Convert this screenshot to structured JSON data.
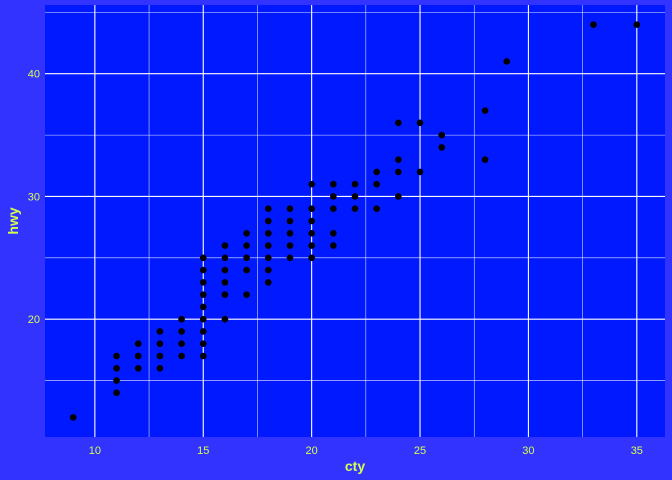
{
  "colors": {
    "page_background": "#3333ff",
    "panel_background": "#0019ff",
    "grid": "#ffffff",
    "text": "#d6ff4d",
    "points": "#000000"
  },
  "chart_data": {
    "type": "scatter",
    "xlabel": "cty",
    "ylabel": "hwy",
    "xlim": [
      7.7,
      36.3
    ],
    "ylim": [
      10.4,
      45.6
    ],
    "x_ticks": [
      10,
      15,
      20,
      25,
      30,
      35
    ],
    "x_tick_labels": [
      "10",
      "15",
      "20",
      "25",
      "30",
      "35"
    ],
    "y_ticks": [
      20,
      30,
      40
    ],
    "y_tick_labels": [
      "20",
      "30",
      "40"
    ],
    "x_minor_ticks": [
      12.5,
      17.5,
      22.5,
      27.5,
      32.5
    ],
    "y_minor_ticks": [
      15,
      25,
      35,
      45
    ],
    "grid": true,
    "legend": "none",
    "points": [
      [
        9,
        12
      ],
      [
        11,
        14
      ],
      [
        11,
        15
      ],
      [
        11,
        16
      ],
      [
        11,
        17
      ],
      [
        12,
        16
      ],
      [
        12,
        17
      ],
      [
        12,
        18
      ],
      [
        13,
        16
      ],
      [
        13,
        17
      ],
      [
        13,
        18
      ],
      [
        13,
        19
      ],
      [
        14,
        17
      ],
      [
        14,
        18
      ],
      [
        14,
        19
      ],
      [
        14,
        20
      ],
      [
        15,
        17
      ],
      [
        15,
        18
      ],
      [
        15,
        19
      ],
      [
        15,
        20
      ],
      [
        15,
        21
      ],
      [
        15,
        22
      ],
      [
        15,
        23
      ],
      [
        15,
        24
      ],
      [
        15,
        25
      ],
      [
        16,
        20
      ],
      [
        16,
        22
      ],
      [
        16,
        23
      ],
      [
        16,
        24
      ],
      [
        16,
        25
      ],
      [
        16,
        26
      ],
      [
        17,
        22
      ],
      [
        17,
        24
      ],
      [
        17,
        25
      ],
      [
        17,
        26
      ],
      [
        17,
        27
      ],
      [
        18,
        23
      ],
      [
        18,
        24
      ],
      [
        18,
        25
      ],
      [
        18,
        26
      ],
      [
        18,
        27
      ],
      [
        18,
        28
      ],
      [
        18,
        29
      ],
      [
        19,
        25
      ],
      [
        19,
        26
      ],
      [
        19,
        27
      ],
      [
        19,
        28
      ],
      [
        19,
        29
      ],
      [
        20,
        25
      ],
      [
        20,
        26
      ],
      [
        20,
        27
      ],
      [
        20,
        28
      ],
      [
        20,
        29
      ],
      [
        20,
        31
      ],
      [
        21,
        26
      ],
      [
        21,
        27
      ],
      [
        21,
        29
      ],
      [
        21,
        30
      ],
      [
        21,
        31
      ],
      [
        22,
        29
      ],
      [
        22,
        30
      ],
      [
        22,
        31
      ],
      [
        23,
        29
      ],
      [
        23,
        31
      ],
      [
        23,
        32
      ],
      [
        24,
        30
      ],
      [
        24,
        32
      ],
      [
        24,
        33
      ],
      [
        24,
        36
      ],
      [
        25,
        32
      ],
      [
        25,
        36
      ],
      [
        26,
        34
      ],
      [
        26,
        35
      ],
      [
        28,
        33
      ],
      [
        28,
        37
      ],
      [
        29,
        41
      ],
      [
        33,
        44
      ],
      [
        35,
        44
      ]
    ]
  }
}
